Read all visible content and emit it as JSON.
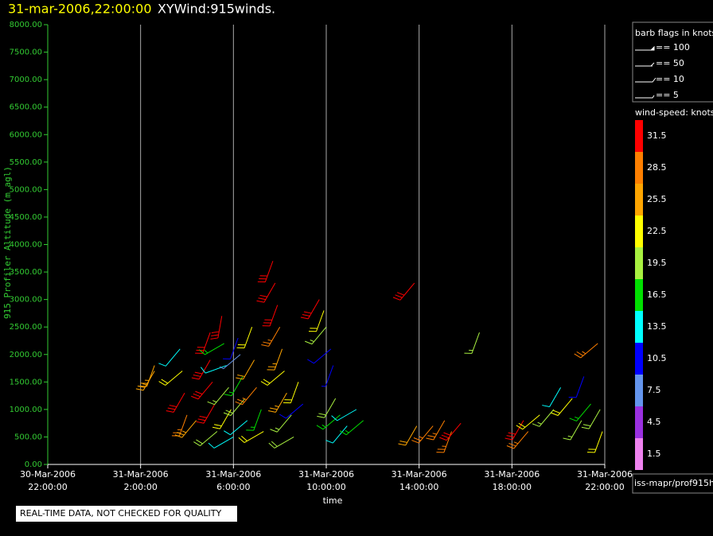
{
  "chart_data": {
    "type": "windbarb",
    "title_time": "31-mar-2006,22:00:00",
    "title": "XYWind:915winds.",
    "y_label": "915 Profiler Altitude (m agl)",
    "x_label": "time",
    "ylim": [
      0,
      8000
    ],
    "yticks": [
      {
        "value": 0,
        "label": "0.00"
      },
      {
        "value": 500,
        "label": "500.00"
      },
      {
        "value": 1000,
        "label": "1000.00"
      },
      {
        "value": 1500,
        "label": "1500.00"
      },
      {
        "value": 2000,
        "label": "2000.00"
      },
      {
        "value": 2500,
        "label": "2500.00"
      },
      {
        "value": 3000,
        "label": "3000.00"
      },
      {
        "value": 3500,
        "label": "3500.00"
      },
      {
        "value": 4000,
        "label": "4000.00"
      },
      {
        "value": 4500,
        "label": "4500.00"
      },
      {
        "value": 5000,
        "label": "5000.00"
      },
      {
        "value": 5500,
        "label": "5500.00"
      },
      {
        "value": 6000,
        "label": "6000.00"
      },
      {
        "value": 6500,
        "label": "6500.00"
      },
      {
        "value": 7000,
        "label": "7000.00"
      },
      {
        "value": 7500,
        "label": "7500.00"
      },
      {
        "value": 8000,
        "label": "8000.00"
      }
    ],
    "xlim": [
      0,
      24
    ],
    "xticks": [
      {
        "value": 0,
        "label": [
          "30-Mar-2006",
          "22:00:00"
        ]
      },
      {
        "value": 4,
        "label": [
          "31-Mar-2006",
          "2:00:00"
        ]
      },
      {
        "value": 8,
        "label": [
          "31-Mar-2006",
          "6:00:00"
        ]
      },
      {
        "value": 12,
        "label": [
          "31-Mar-2006",
          "10:00:00"
        ]
      },
      {
        "value": 16,
        "label": [
          "31-Mar-2006",
          "14:00:00"
        ]
      },
      {
        "value": 20,
        "label": [
          "31-Mar-2006",
          "18:00:00"
        ]
      },
      {
        "value": 24,
        "label": [
          "31-Mar-2006",
          "22:00:00"
        ]
      }
    ],
    "grid": true,
    "x": [
      4.6,
      4.6,
      5.7,
      5.8,
      5.9,
      6.0,
      6.4,
      7.0,
      7.0,
      7.1,
      7.2,
      7.3,
      7.5,
      7.6,
      7.7,
      7.8,
      7.9,
      8.0,
      8.2,
      8.3,
      8.4,
      8.5,
      8.6,
      8.8,
      8.9,
      9.0,
      9.2,
      9.3,
      9.7,
      9.8,
      9.9,
      10.0,
      10.1,
      10.2,
      10.3,
      10.5,
      10.6,
      10.8,
      11.0,
      11.7,
      11.9,
      12.0,
      12.2,
      12.3,
      12.4,
      12.6,
      12.9,
      13.3,
      13.6,
      15.8,
      15.9,
      16.6,
      17.1,
      17.4,
      17.8,
      18.6,
      20.5,
      20.7,
      21.2,
      21.8,
      22.1,
      22.6,
      23.0,
      23.1,
      23.4,
      23.7,
      23.8,
      23.9
    ],
    "y": [
      1800,
      1700,
      2100,
      1700,
      1300,
      900,
      800,
      2400,
      1900,
      1500,
      1100,
      600,
      2700,
      2200,
      1800,
      1400,
      1000,
      500,
      2300,
      2000,
      1600,
      1200,
      800,
      2500,
      1900,
      1400,
      1000,
      600,
      3700,
      3300,
      2900,
      2500,
      2100,
      1700,
      1300,
      900,
      500,
      1500,
      1100,
      3000,
      2800,
      2500,
      2100,
      1800,
      1200,
      900,
      700,
      1000,
      800,
      3300,
      700,
      700,
      800,
      600,
      750,
      2400,
      800,
      600,
      900,
      1000,
      1400,
      1200,
      800,
      1600,
      1100,
      2200,
      1000,
      600
    ],
    "speed": [
      26,
      25,
      14,
      22,
      31,
      28,
      25,
      32,
      30,
      33,
      31,
      20,
      31,
      17,
      12,
      19,
      22,
      14,
      10,
      8,
      16,
      20,
      13,
      21,
      24,
      28,
      17,
      22,
      32,
      31,
      32,
      28,
      25,
      22,
      26,
      19,
      20,
      23,
      10,
      31,
      23,
      18,
      11,
      9,
      20,
      17,
      14,
      12,
      15,
      32,
      24,
      27,
      28,
      29,
      31,
      18,
      31,
      28,
      21,
      18,
      14,
      21,
      19,
      11,
      16,
      27,
      20,
      23
    ],
    "direction": [
      200,
      210,
      220,
      230,
      210,
      200,
      220,
      200,
      210,
      220,
      210,
      230,
      190,
      240,
      250,
      220,
      210,
      240,
      200,
      230,
      210,
      220,
      230,
      200,
      210,
      220,
      200,
      240,
      200,
      210,
      200,
      210,
      200,
      230,
      210,
      220,
      240,
      200,
      230,
      210,
      200,
      220,
      230,
      200,
      210,
      230,
      220,
      240,
      230,
      220,
      210,
      220,
      210,
      200,
      220,
      200,
      210,
      220,
      230,
      220,
      210,
      220,
      210,
      200,
      220,
      230,
      210,
      200
    ],
    "barb_legend": {
      "title": "barb flags in knots",
      "entries": [
        "== 100",
        "== 50",
        "== 10",
        "== 5"
      ]
    },
    "colorscale": {
      "title": "wind-speed: knots",
      "labels": [
        31.5,
        28.5,
        25.5,
        22.5,
        19.5,
        16.5,
        13.5,
        10.5,
        7.5,
        4.5,
        1.5
      ],
      "colors": [
        "#ff0000",
        "#ff7f00",
        "#ffa500",
        "#ffff00",
        "#a8f040",
        "#00e000",
        "#00ffff",
        "#0000ff",
        "#6495ed",
        "#9a30e0",
        "#ee82ee"
      ]
    },
    "source": "iss-mapr/prof915h",
    "notice": "REAL-TIME DATA, NOT CHECKED FOR QUALITY"
  }
}
